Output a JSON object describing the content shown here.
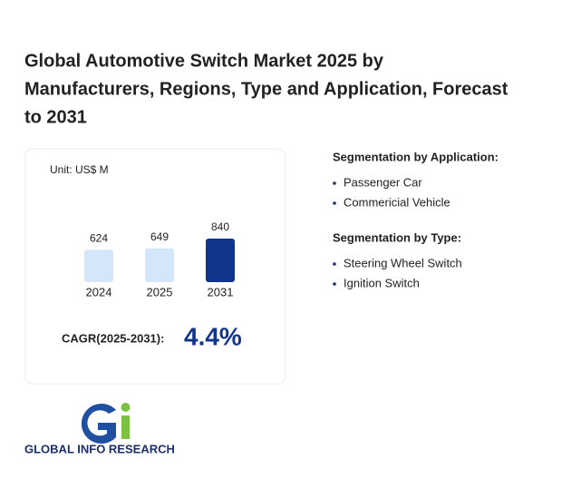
{
  "title_lines": [
    "Global Automotive Switch Market 2025 by",
    "Manufacturers, Regions, Type and Application, Forecast",
    "to 2031"
  ],
  "chart_data": {
    "type": "bar",
    "unit_label": "Unit: US$ M",
    "categories": [
      "2024",
      "2025",
      "2031"
    ],
    "values": [
      624,
      649,
      840
    ],
    "colors": [
      "#d4e6fa",
      "#d4e6fa",
      "#12358c"
    ]
  },
  "cagr": {
    "label": "CAGR(2025-2031):",
    "value": "4.4%"
  },
  "segments": [
    {
      "heading": "Segmentation by Application:",
      "items": [
        "Passenger Car",
        "Commericial Vehicle"
      ]
    },
    {
      "heading": "Segmentation by Type:",
      "items": [
        "Steering Wheel Switch",
        "Ignition Switch"
      ]
    }
  ],
  "logo_text": "GLOBAL INFO RESEARCH"
}
